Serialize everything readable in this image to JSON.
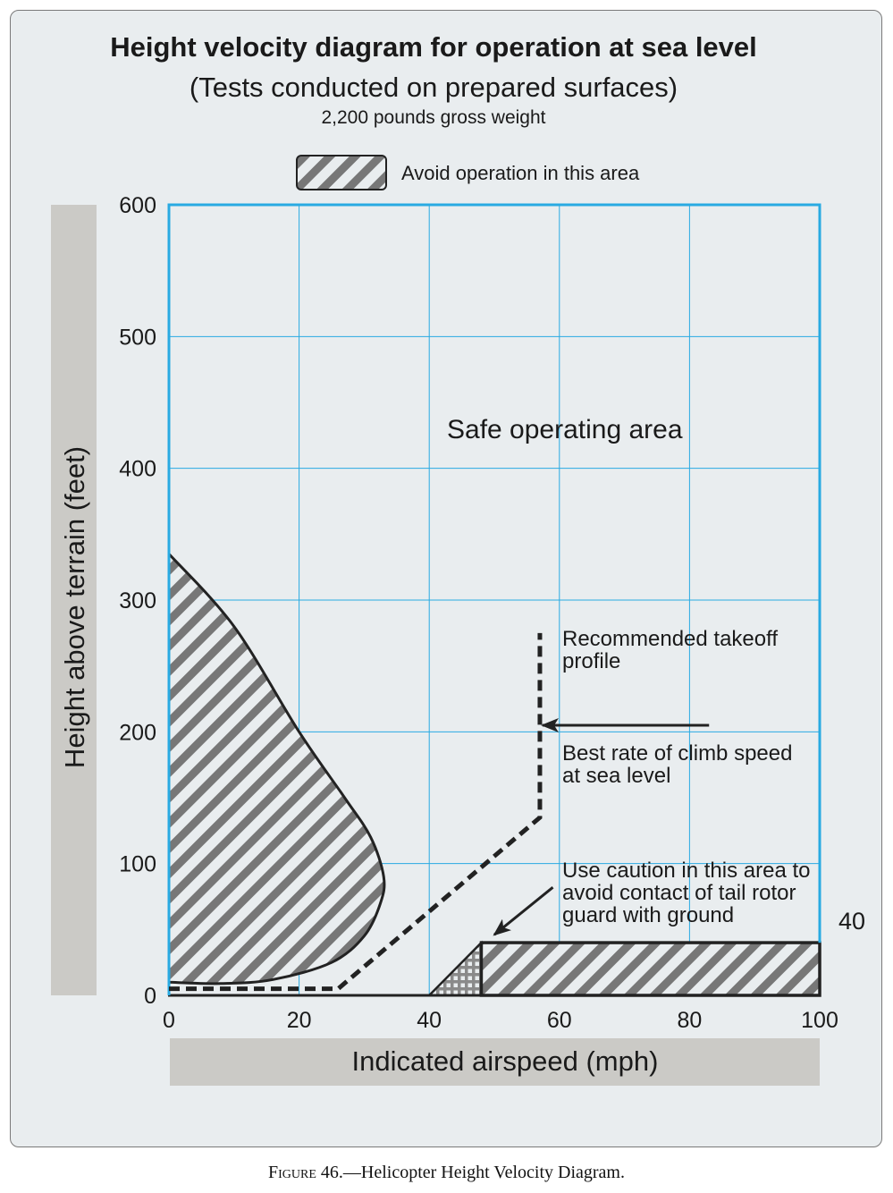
{
  "chart_data": {
    "type": "area",
    "title": "Height velocity diagram for operation at sea level",
    "subtitle": "(Tests conducted on prepared surfaces)",
    "subtitle2": "2,200 pounds gross weight",
    "xlabel": "Indicated airspeed (mph)",
    "ylabel": "Height above terrain (feet)",
    "xlim": [
      0,
      100
    ],
    "ylim": [
      0,
      600
    ],
    "xticks": [
      0,
      20,
      40,
      60,
      80,
      100
    ],
    "yticks": [
      0,
      100,
      200,
      300,
      400,
      500,
      600
    ],
    "grid": true,
    "legend": {
      "label": "Avoid operation in this area",
      "position": "top-center"
    },
    "colors": {
      "grid": "#29aae2",
      "hatch": "#777777",
      "panel": "#e9edef",
      "axis_band": "#cbcac6"
    },
    "avoid_region_low_speed_high_altitude": [
      {
        "x": 0,
        "y": 335
      },
      {
        "x": 10,
        "y": 280
      },
      {
        "x": 20,
        "y": 200
      },
      {
        "x": 27,
        "y": 150
      },
      {
        "x": 31,
        "y": 120
      },
      {
        "x": 33,
        "y": 90
      },
      {
        "x": 32.5,
        "y": 70
      },
      {
        "x": 30,
        "y": 45
      },
      {
        "x": 25,
        "y": 25
      },
      {
        "x": 16,
        "y": 12
      },
      {
        "x": 8,
        "y": 9
      },
      {
        "x": 0,
        "y": 10
      }
    ],
    "avoid_region_high_speed_low_altitude": {
      "x_start": 48,
      "x_end": 100,
      "y_bottom": 0,
      "y_top": 40
    },
    "caution_region": [
      {
        "x": 40,
        "y": 0
      },
      {
        "x": 48,
        "y": 40
      },
      {
        "x": 48,
        "y": 0
      }
    ],
    "takeoff_profile": [
      {
        "x": 0,
        "y": 5
      },
      {
        "x": 26,
        "y": 5
      },
      {
        "x": 57,
        "y": 135
      },
      {
        "x": 57,
        "y": 275
      }
    ],
    "best_rate_of_climb_arrow": {
      "x_from": 83,
      "x_to": 57,
      "y": 205
    },
    "caution_arrow": {
      "from": {
        "x": 59,
        "y": 82
      },
      "to": {
        "x": 50,
        "y": 46
      }
    },
    "caution_top_value": "40",
    "annotations": {
      "safe_area": "Safe operating area",
      "takeoff_profile": [
        "Recommended takeoff",
        "profile"
      ],
      "best_rate_of_climb": [
        "Best rate of climb speed",
        "at sea level"
      ],
      "caution": [
        "Use caution in this area to",
        "avoid contact of tail rotor",
        "guard with ground"
      ]
    }
  },
  "caption": {
    "figure_label": "Figure",
    "figure_rest": " 46.—Helicopter Height Velocity Diagram."
  }
}
